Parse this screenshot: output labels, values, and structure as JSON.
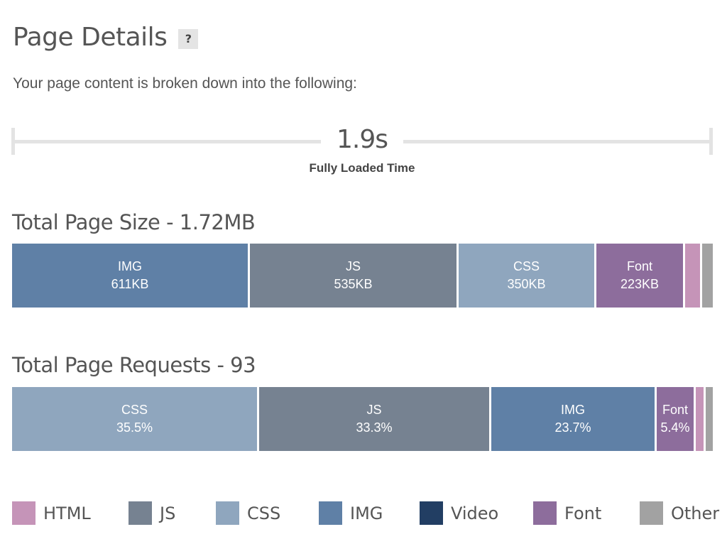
{
  "header": {
    "title": "Page Details",
    "help_label": "?",
    "subtitle": "Your page content is broken down into the following:"
  },
  "timeline": {
    "value": "1.9s",
    "label": "Fully Loaded Time"
  },
  "colors": {
    "HTML": "#c594b8",
    "JS": "#768291",
    "CSS": "#8fa6be",
    "IMG": "#5f80a6",
    "Video": "#223e63",
    "Font": "#8d6d9c",
    "Other": "#a2a2a2"
  },
  "size_section": {
    "title": "Total Page Size - 1.72MB",
    "segments": [
      {
        "key": "IMG",
        "label": "IMG",
        "value": "611KB",
        "fraction": 0.342
      },
      {
        "key": "JS",
        "label": "JS",
        "value": "535KB",
        "fraction": 0.299
      },
      {
        "key": "CSS",
        "label": "CSS",
        "value": "350KB",
        "fraction": 0.197
      },
      {
        "key": "Font",
        "label": "Font",
        "value": "223KB",
        "fraction": 0.125
      },
      {
        "key": "HTML",
        "label": "",
        "value": "",
        "fraction": 0.022
      },
      {
        "key": "Other",
        "label": "",
        "value": "",
        "fraction": 0.004
      }
    ]
  },
  "requests_section": {
    "title": "Total Page Requests - 93",
    "segments": [
      {
        "key": "CSS",
        "label": "CSS",
        "value": "35.5%",
        "fraction": 0.355
      },
      {
        "key": "JS",
        "label": "JS",
        "value": "33.3%",
        "fraction": 0.333
      },
      {
        "key": "IMG",
        "label": "IMG",
        "value": "23.7%",
        "fraction": 0.237
      },
      {
        "key": "Font",
        "label": "Font",
        "value": "5.4%",
        "fraction": 0.054
      },
      {
        "key": "HTML",
        "label": "",
        "value": "",
        "fraction": 0.011
      },
      {
        "key": "Other",
        "label": "",
        "value": "",
        "fraction": 0.01
      }
    ]
  },
  "legend": [
    {
      "key": "HTML",
      "label": "HTML"
    },
    {
      "key": "JS",
      "label": "JS"
    },
    {
      "key": "CSS",
      "label": "CSS"
    },
    {
      "key": "IMG",
      "label": "IMG"
    },
    {
      "key": "Video",
      "label": "Video"
    },
    {
      "key": "Font",
      "label": "Font"
    },
    {
      "key": "Other",
      "label": "Other"
    }
  ]
}
